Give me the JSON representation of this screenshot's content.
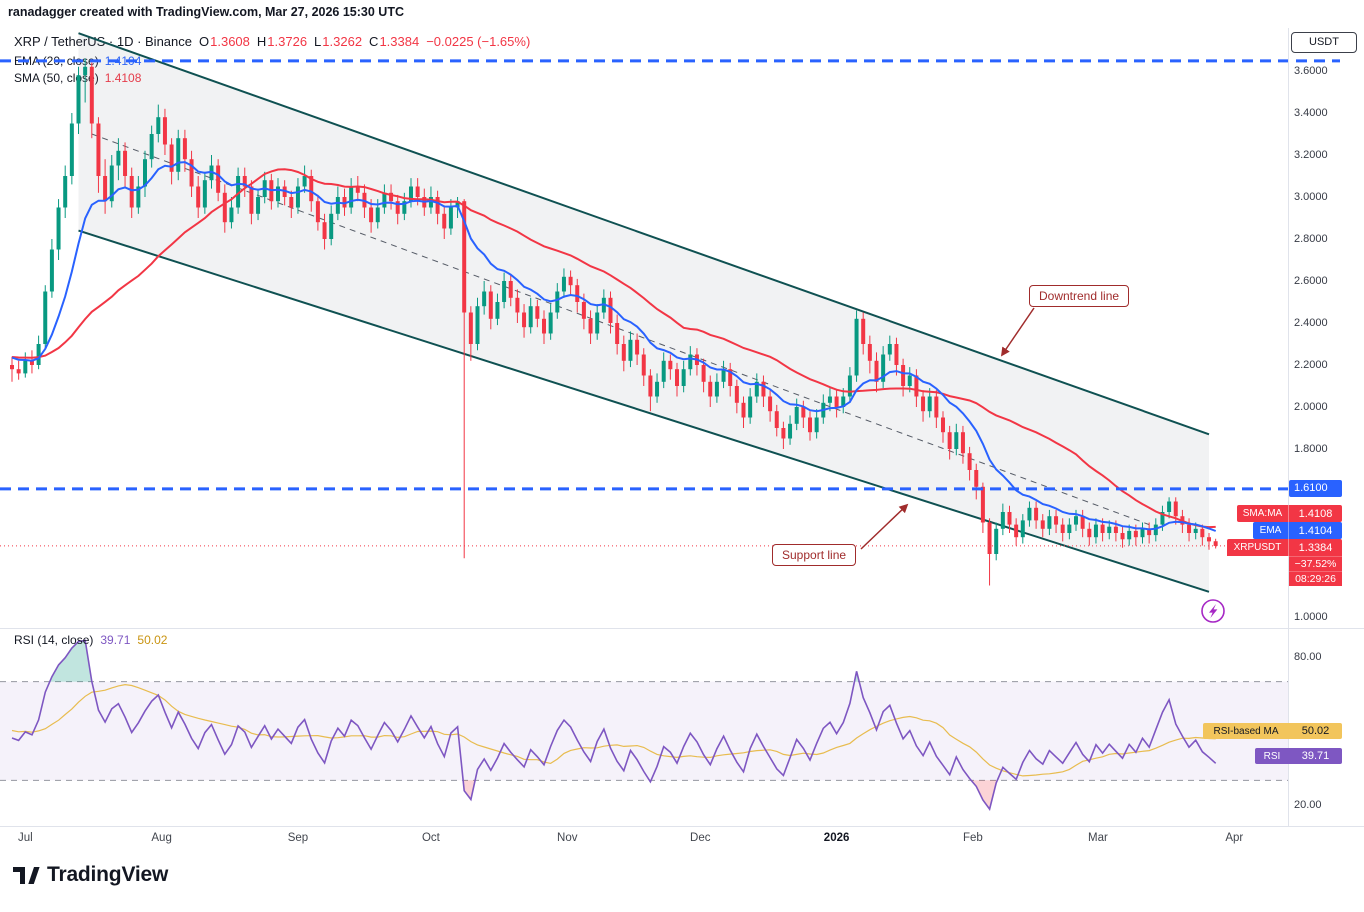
{
  "top_bar": {
    "text": "ranadagger created with TradingView.com, Mar 27, 2026 15:30 UTC"
  },
  "header": {
    "title": "XRP / TetherUS · 1D · Binance",
    "o_label": "O",
    "o": "1.3608",
    "h_label": "H",
    "h": "1.3726",
    "l_label": "L",
    "l": "1.3262",
    "c_label": "C",
    "c": "1.3384",
    "change": "−0.0225 (−1.65%)",
    "ema_label": "EMA (20, close)",
    "ema_value": "1.4104",
    "sma_label": "SMA (50, close)",
    "sma_value": "1.4108"
  },
  "price_scale": {
    "currency_button": "USDT",
    "ticks": [
      "3.6000",
      "3.4000",
      "3.2000",
      "3.0000",
      "2.8000",
      "2.6000",
      "2.4000",
      "2.2000",
      "2.0000",
      "1.8000",
      "1.0000"
    ],
    "tick_prices": [
      3.6,
      3.4,
      3.2,
      3.0,
      2.8,
      2.6,
      2.4,
      2.2,
      2.0,
      1.8,
      1.0
    ],
    "level_tag": "1.6100",
    "sma_tag": {
      "prefix": "SMA:MA",
      "value": "1.4108"
    },
    "ema_tag": {
      "prefix": "EMA",
      "value": "1.4104"
    },
    "symbol_tag": {
      "prefix": "XRPUSDT",
      "value": "1.3384",
      "change": "−37.52%",
      "countdown": "08:29:26"
    }
  },
  "rsi_panel": {
    "label": "RSI (14, close)",
    "value": "39.71",
    "ma_value": "50.02",
    "ticks": [
      "80.00",
      "20.00"
    ],
    "tick_values": [
      80,
      20
    ],
    "ma_tag": {
      "prefix": "RSI-based MA",
      "value": "50.02"
    },
    "rsi_tag": {
      "prefix": "RSI",
      "value": "39.71"
    }
  },
  "annotations": {
    "downtrend": "Downtrend line",
    "support": "Support line"
  },
  "time_axis": {
    "labels": [
      "Jul",
      "Aug",
      "Sep",
      "Oct",
      "Nov",
      "Dec",
      "2026",
      "Feb",
      "Mar",
      "Apr"
    ]
  },
  "logo": {
    "text": "TradingView"
  },
  "colors": {
    "up": "#089981",
    "down": "#F23645",
    "ema": "#2962FF",
    "sma": "#F23645",
    "level_line": "#2962FF",
    "channel_line": "#0F5152",
    "channel_fill": "rgba(120,123,134,0.10)",
    "trend_dash": "#555B66",
    "rsi_line": "#7E57C2",
    "rsi_ma": "#E8BC4F",
    "rsi_band_fill": "rgba(126,87,194,0.08)",
    "band_dash": "#9598A1",
    "green_fill": "rgba(8,153,129,0.25)",
    "red_fill": "rgba(242,54,69,0.22)",
    "callout": "#A02C2C",
    "icon_purple": "#A628C5",
    "separator": "#E0E3EB"
  },
  "chart_data": {
    "type": "candlestick",
    "title": "XRP / TetherUS · 1D · Binance",
    "y_axis": {
      "unit": "USDT",
      "min": 1.0,
      "max": 3.7,
      "tick_step": 0.2
    },
    "x_axis": {
      "labels": [
        "Jul",
        "Aug",
        "Sep",
        "Oct",
        "Nov",
        "Dec",
        "2026",
        "Feb",
        "Mar",
        "Apr"
      ],
      "days_per_candle": 1.5
    },
    "last": {
      "open": 1.3608,
      "high": 1.3726,
      "low": 1.3262,
      "close": 1.3384,
      "change_abs": -0.0225,
      "change_pct": -1.65
    },
    "overlays": [
      {
        "name": "EMA (20, close)",
        "type": "ema",
        "period": 20,
        "last_value": 1.4104,
        "color": "#2962FF"
      },
      {
        "name": "SMA (50, close)",
        "type": "sma",
        "period": 50,
        "last_value": 1.4108,
        "color": "#F23645"
      }
    ],
    "horizontal_levels": [
      {
        "price": 3.648,
        "style": "dashed",
        "color": "#2962FF"
      },
      {
        "price": 1.61,
        "style": "dashed",
        "color": "#2962FF",
        "tag": "1.6100"
      }
    ],
    "channel": {
      "upper": {
        "from_idx": 10,
        "from_price": 3.78,
        "to_idx": 180,
        "to_price": 1.87
      },
      "lower": {
        "from_idx": 10,
        "from_price": 2.84,
        "to_idx": 180,
        "to_price": 1.12
      },
      "mid_dashed": {
        "from_idx": 12,
        "from_price": 3.3,
        "to_idx": 171,
        "to_price": 1.44
      }
    },
    "rsi": {
      "period": 14,
      "current": 39.71,
      "ma_current": 50.02,
      "bands": [
        70,
        30
      ],
      "scale_ticks": [
        80,
        20
      ]
    },
    "candles_ohlc": [
      [
        2.2,
        2.24,
        2.12,
        2.18
      ],
      [
        2.18,
        2.22,
        2.13,
        2.16
      ],
      [
        2.16,
        2.26,
        2.14,
        2.22
      ],
      [
        2.22,
        2.27,
        2.16,
        2.2
      ],
      [
        2.2,
        2.34,
        2.18,
        2.3
      ],
      [
        2.3,
        2.58,
        2.28,
        2.55
      ],
      [
        2.55,
        2.8,
        2.52,
        2.75
      ],
      [
        2.75,
        2.99,
        2.7,
        2.95
      ],
      [
        2.95,
        3.15,
        2.9,
        3.1
      ],
      [
        3.1,
        3.4,
        3.06,
        3.35
      ],
      [
        3.35,
        3.62,
        3.3,
        3.58
      ],
      [
        3.58,
        3.66,
        3.45,
        3.62
      ],
      [
        3.62,
        3.64,
        3.28,
        3.35
      ],
      [
        3.35,
        3.38,
        3.02,
        3.1
      ],
      [
        3.1,
        3.18,
        2.92,
        2.98
      ],
      [
        2.98,
        3.2,
        2.95,
        3.15
      ],
      [
        3.15,
        3.28,
        3.08,
        3.22
      ],
      [
        3.22,
        3.26,
        3.05,
        3.1
      ],
      [
        3.1,
        3.14,
        2.9,
        2.95
      ],
      [
        2.95,
        3.1,
        2.92,
        3.05
      ],
      [
        3.05,
        3.22,
        3.0,
        3.18
      ],
      [
        3.18,
        3.34,
        3.14,
        3.3
      ],
      [
        3.3,
        3.44,
        3.26,
        3.38
      ],
      [
        3.38,
        3.42,
        3.2,
        3.25
      ],
      [
        3.25,
        3.28,
        3.06,
        3.12
      ],
      [
        3.12,
        3.32,
        3.08,
        3.28
      ],
      [
        3.28,
        3.32,
        3.12,
        3.18
      ],
      [
        3.18,
        3.22,
        3.0,
        3.05
      ],
      [
        3.05,
        3.1,
        2.9,
        2.95
      ],
      [
        2.95,
        3.12,
        2.92,
        3.08
      ],
      [
        3.08,
        3.2,
        3.04,
        3.15
      ],
      [
        3.15,
        3.18,
        2.98,
        3.02
      ],
      [
        3.02,
        3.06,
        2.83,
        2.88
      ],
      [
        2.88,
        3.0,
        2.85,
        2.95
      ],
      [
        2.95,
        3.14,
        2.92,
        3.1
      ],
      [
        3.1,
        3.14,
        3.0,
        3.05
      ],
      [
        3.05,
        3.08,
        2.87,
        2.92
      ],
      [
        2.92,
        3.04,
        2.89,
        3.0
      ],
      [
        3.0,
        3.12,
        2.97,
        3.08
      ],
      [
        3.08,
        3.11,
        2.94,
        2.98
      ],
      [
        2.98,
        3.09,
        2.95,
        3.05
      ],
      [
        3.05,
        3.08,
        2.96,
        3.0
      ],
      [
        3.0,
        3.03,
        2.9,
        2.95
      ],
      [
        2.95,
        3.09,
        2.92,
        3.05
      ],
      [
        3.05,
        3.15,
        3.02,
        3.1
      ],
      [
        3.1,
        3.13,
        2.93,
        2.98
      ],
      [
        2.98,
        3.01,
        2.84,
        2.88
      ],
      [
        2.88,
        2.92,
        2.75,
        2.8
      ],
      [
        2.8,
        2.96,
        2.77,
        2.92
      ],
      [
        2.92,
        3.05,
        2.89,
        3.0
      ],
      [
        3.0,
        3.04,
        2.91,
        2.95
      ],
      [
        2.95,
        3.09,
        2.92,
        3.05
      ],
      [
        3.05,
        3.1,
        2.98,
        3.02
      ],
      [
        3.02,
        3.06,
        2.9,
        2.95
      ],
      [
        2.95,
        2.99,
        2.83,
        2.88
      ],
      [
        2.88,
        2.99,
        2.85,
        2.95
      ],
      [
        2.95,
        3.06,
        2.92,
        3.02
      ],
      [
        3.02,
        3.06,
        2.94,
        2.98
      ],
      [
        2.98,
        3.01,
        2.87,
        2.92
      ],
      [
        2.92,
        3.02,
        2.89,
        2.98
      ],
      [
        2.98,
        3.09,
        2.95,
        3.05
      ],
      [
        3.05,
        3.09,
        2.96,
        3.0
      ],
      [
        3.0,
        3.04,
        2.91,
        2.95
      ],
      [
        2.95,
        3.05,
        2.92,
        3.0
      ],
      [
        3.0,
        3.03,
        2.87,
        2.92
      ],
      [
        2.92,
        2.96,
        2.8,
        2.85
      ],
      [
        2.85,
        2.99,
        2.82,
        2.95
      ],
      [
        2.95,
        3.0,
        2.9,
        2.98
      ],
      [
        2.98,
        2.99,
        1.28,
        2.45
      ],
      [
        2.45,
        2.48,
        2.22,
        2.3
      ],
      [
        2.3,
        2.52,
        2.27,
        2.48
      ],
      [
        2.48,
        2.6,
        2.44,
        2.55
      ],
      [
        2.55,
        2.58,
        2.37,
        2.42
      ],
      [
        2.42,
        2.54,
        2.39,
        2.5
      ],
      [
        2.5,
        2.64,
        2.47,
        2.6
      ],
      [
        2.6,
        2.63,
        2.48,
        2.52
      ],
      [
        2.52,
        2.56,
        2.4,
        2.45
      ],
      [
        2.45,
        2.49,
        2.33,
        2.38
      ],
      [
        2.38,
        2.52,
        2.35,
        2.48
      ],
      [
        2.48,
        2.51,
        2.38,
        2.42
      ],
      [
        2.42,
        2.46,
        2.3,
        2.35
      ],
      [
        2.35,
        2.49,
        2.32,
        2.45
      ],
      [
        2.45,
        2.59,
        2.42,
        2.55
      ],
      [
        2.55,
        2.66,
        2.52,
        2.62
      ],
      [
        2.62,
        2.65,
        2.53,
        2.58
      ],
      [
        2.58,
        2.61,
        2.45,
        2.5
      ],
      [
        2.5,
        2.54,
        2.37,
        2.42
      ],
      [
        2.42,
        2.46,
        2.3,
        2.35
      ],
      [
        2.35,
        2.49,
        2.32,
        2.45
      ],
      [
        2.45,
        2.56,
        2.42,
        2.52
      ],
      [
        2.52,
        2.55,
        2.35,
        2.4
      ],
      [
        2.4,
        2.44,
        2.25,
        2.3
      ],
      [
        2.3,
        2.34,
        2.17,
        2.22
      ],
      [
        2.22,
        2.36,
        2.19,
        2.32
      ],
      [
        2.32,
        2.35,
        2.2,
        2.25
      ],
      [
        2.25,
        2.28,
        2.1,
        2.15
      ],
      [
        2.15,
        2.18,
        1.98,
        2.05
      ],
      [
        2.05,
        2.16,
        2.02,
        2.12
      ],
      [
        2.12,
        2.26,
        2.09,
        2.22
      ],
      [
        2.22,
        2.25,
        2.13,
        2.18
      ],
      [
        2.18,
        2.21,
        2.05,
        2.1
      ],
      [
        2.1,
        2.22,
        2.07,
        2.18
      ],
      [
        2.18,
        2.29,
        2.15,
        2.25
      ],
      [
        2.25,
        2.28,
        2.15,
        2.2
      ],
      [
        2.2,
        2.23,
        2.07,
        2.12
      ],
      [
        2.12,
        2.15,
        2.0,
        2.05
      ],
      [
        2.05,
        2.16,
        2.02,
        2.12
      ],
      [
        2.12,
        2.22,
        2.09,
        2.18
      ],
      [
        2.18,
        2.21,
        2.05,
        2.1
      ],
      [
        2.1,
        2.13,
        1.97,
        2.02
      ],
      [
        2.02,
        2.05,
        1.9,
        1.95
      ],
      [
        1.95,
        2.09,
        1.92,
        2.05
      ],
      [
        2.05,
        2.16,
        2.02,
        2.12
      ],
      [
        2.12,
        2.15,
        2.0,
        2.05
      ],
      [
        2.05,
        2.08,
        1.93,
        1.98
      ],
      [
        1.98,
        2.01,
        1.86,
        1.9
      ],
      [
        1.9,
        1.93,
        1.8,
        1.85
      ],
      [
        1.85,
        1.96,
        1.82,
        1.92
      ],
      [
        1.92,
        2.04,
        1.89,
        2.0
      ],
      [
        2.0,
        2.03,
        1.9,
        1.95
      ],
      [
        1.95,
        1.98,
        1.84,
        1.88
      ],
      [
        1.88,
        1.99,
        1.85,
        1.95
      ],
      [
        1.95,
        2.06,
        1.92,
        2.02
      ],
      [
        2.02,
        2.09,
        1.98,
        2.05
      ],
      [
        2.05,
        2.08,
        1.95,
        2.0
      ],
      [
        2.0,
        2.09,
        1.97,
        2.05
      ],
      [
        2.05,
        2.19,
        2.02,
        2.15
      ],
      [
        2.15,
        2.46,
        2.12,
        2.42
      ],
      [
        2.42,
        2.45,
        2.25,
        2.3
      ],
      [
        2.3,
        2.34,
        2.16,
        2.22
      ],
      [
        2.22,
        2.26,
        2.07,
        2.12
      ],
      [
        2.12,
        2.29,
        2.09,
        2.25
      ],
      [
        2.25,
        2.34,
        2.22,
        2.3
      ],
      [
        2.3,
        2.33,
        2.15,
        2.2
      ],
      [
        2.2,
        2.23,
        2.05,
        2.1
      ],
      [
        2.1,
        2.19,
        2.07,
        2.15
      ],
      [
        2.15,
        2.18,
        2.0,
        2.05
      ],
      [
        2.05,
        2.08,
        1.93,
        1.98
      ],
      [
        1.98,
        2.09,
        1.95,
        2.05
      ],
      [
        2.05,
        2.08,
        1.9,
        1.95
      ],
      [
        1.95,
        1.98,
        1.83,
        1.88
      ],
      [
        1.88,
        1.91,
        1.75,
        1.8
      ],
      [
        1.8,
        1.92,
        1.77,
        1.88
      ],
      [
        1.88,
        1.91,
        1.73,
        1.78
      ],
      [
        1.78,
        1.81,
        1.65,
        1.7
      ],
      [
        1.7,
        1.73,
        1.56,
        1.62
      ],
      [
        1.62,
        1.64,
        1.4,
        1.45
      ],
      [
        1.45,
        1.47,
        1.15,
        1.3
      ],
      [
        1.3,
        1.45,
        1.27,
        1.42
      ],
      [
        1.42,
        1.54,
        1.39,
        1.5
      ],
      [
        1.5,
        1.53,
        1.4,
        1.44
      ],
      [
        1.44,
        1.47,
        1.34,
        1.38
      ],
      [
        1.38,
        1.49,
        1.35,
        1.46
      ],
      [
        1.46,
        1.55,
        1.43,
        1.52
      ],
      [
        1.52,
        1.55,
        1.42,
        1.46
      ],
      [
        1.46,
        1.49,
        1.38,
        1.42
      ],
      [
        1.42,
        1.51,
        1.39,
        1.48
      ],
      [
        1.48,
        1.51,
        1.4,
        1.44
      ],
      [
        1.44,
        1.47,
        1.36,
        1.4
      ],
      [
        1.4,
        1.47,
        1.37,
        1.44
      ],
      [
        1.44,
        1.51,
        1.41,
        1.48
      ],
      [
        1.48,
        1.51,
        1.38,
        1.42
      ],
      [
        1.42,
        1.45,
        1.34,
        1.38
      ],
      [
        1.38,
        1.47,
        1.35,
        1.44
      ],
      [
        1.44,
        1.47,
        1.36,
        1.4
      ],
      [
        1.4,
        1.46,
        1.37,
        1.43
      ],
      [
        1.43,
        1.46,
        1.36,
        1.4
      ],
      [
        1.4,
        1.43,
        1.33,
        1.37
      ],
      [
        1.37,
        1.44,
        1.34,
        1.41
      ],
      [
        1.41,
        1.44,
        1.34,
        1.38
      ],
      [
        1.38,
        1.45,
        1.35,
        1.42
      ],
      [
        1.42,
        1.45,
        1.35,
        1.39
      ],
      [
        1.39,
        1.47,
        1.36,
        1.44
      ],
      [
        1.44,
        1.53,
        1.41,
        1.5
      ],
      [
        1.5,
        1.57,
        1.47,
        1.55
      ],
      [
        1.55,
        1.57,
        1.44,
        1.48
      ],
      [
        1.48,
        1.51,
        1.4,
        1.44
      ],
      [
        1.44,
        1.47,
        1.36,
        1.4
      ],
      [
        1.4,
        1.45,
        1.37,
        1.42
      ],
      [
        1.42,
        1.44,
        1.34,
        1.38
      ],
      [
        1.38,
        1.4,
        1.32,
        1.36
      ],
      [
        1.3608,
        1.3726,
        1.3262,
        1.3384
      ]
    ]
  }
}
